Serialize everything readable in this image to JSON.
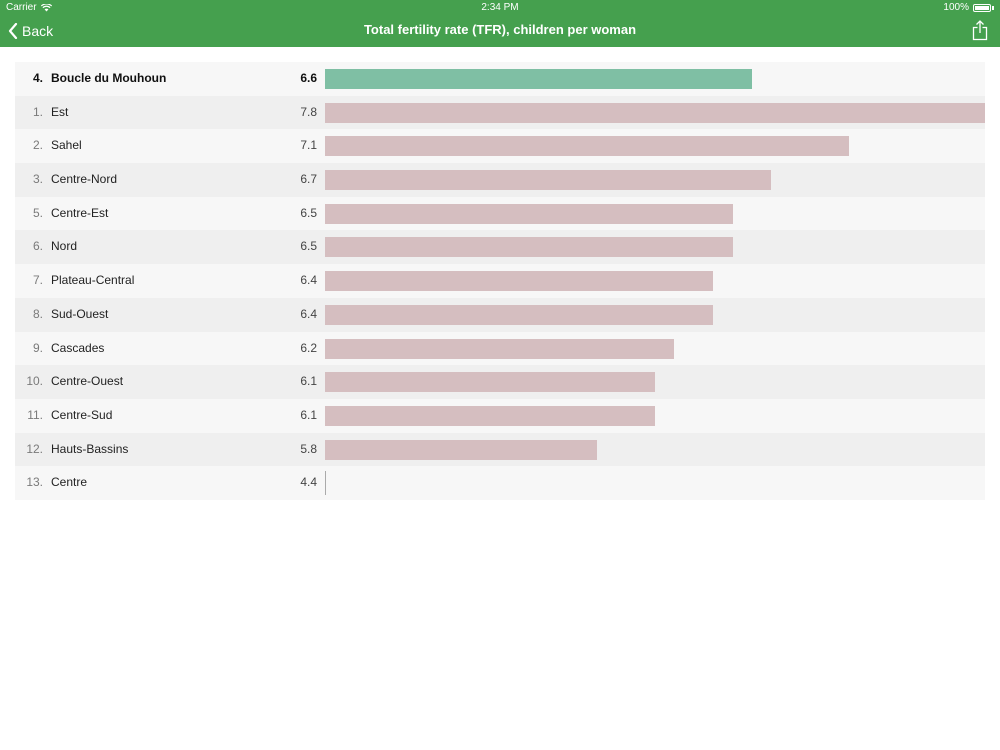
{
  "status_bar": {
    "carrier": "Carrier",
    "time": "2:34 PM",
    "battery": "100%"
  },
  "nav": {
    "back_label": "Back",
    "title": "Total fertility rate (TFR), children per woman"
  },
  "colors": {
    "header": "#45a04e",
    "highlight_bar": "#7fbfa4",
    "bar": "#d5bec0"
  },
  "chart_data": {
    "type": "bar",
    "title": "Total fertility rate (TFR), children per woman",
    "orientation": "horizontal",
    "highlighted": "Boucle du Mouhoun",
    "xlim": [
      4.4,
      7.8
    ],
    "rows": [
      {
        "rank": "4.",
        "name": "Boucle du Mouhoun",
        "value": 6.6,
        "label": "6.6",
        "highlight": true
      },
      {
        "rank": "1.",
        "name": "Est",
        "value": 7.8,
        "label": "7.8"
      },
      {
        "rank": "2.",
        "name": "Sahel",
        "value": 7.1,
        "label": "7.1"
      },
      {
        "rank": "3.",
        "name": "Centre-Nord",
        "value": 6.7,
        "label": "6.7"
      },
      {
        "rank": "5.",
        "name": "Centre-Est",
        "value": 6.5,
        "label": "6.5"
      },
      {
        "rank": "6.",
        "name": "Nord",
        "value": 6.5,
        "label": "6.5"
      },
      {
        "rank": "7.",
        "name": "Plateau-Central",
        "value": 6.4,
        "label": "6.4"
      },
      {
        "rank": "8.",
        "name": "Sud-Ouest",
        "value": 6.4,
        "label": "6.4"
      },
      {
        "rank": "9.",
        "name": "Cascades",
        "value": 6.2,
        "label": "6.2"
      },
      {
        "rank": "10.",
        "name": "Centre-Ouest",
        "value": 6.1,
        "label": "6.1"
      },
      {
        "rank": "11.",
        "name": "Centre-Sud",
        "value": 6.1,
        "label": "6.1"
      },
      {
        "rank": "12.",
        "name": "Hauts-Bassins",
        "value": 5.8,
        "label": "5.8"
      },
      {
        "rank": "13.",
        "name": "Centre",
        "value": 4.4,
        "label": "4.4"
      }
    ]
  }
}
